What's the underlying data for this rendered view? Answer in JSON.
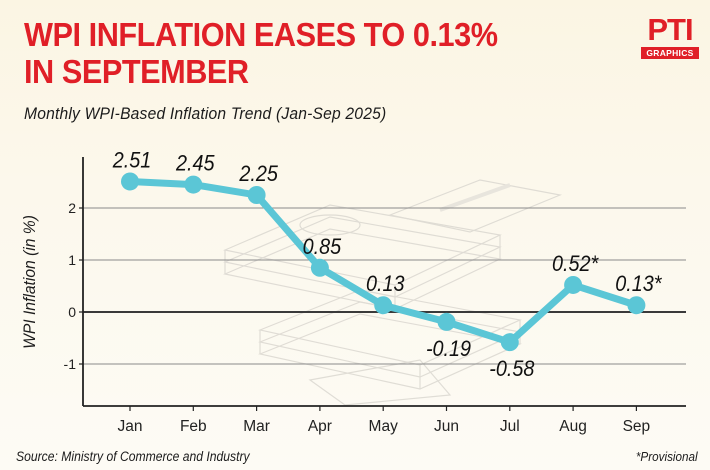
{
  "header": {
    "title_line1": "WPI INFLATION EASES TO 0.13%",
    "title_line2": "IN SEPTEMBER",
    "subtitle": "Monthly WPI-Based Inflation Trend (Jan-Sep 2025)",
    "logo_mark": "PTI",
    "logo_badge": "GRAPHICS"
  },
  "footer": {
    "source": "Source: Ministry of Commerce and Industry",
    "note": "*Provisional"
  },
  "colors": {
    "title": "#e01f27",
    "line": "#5bc6d6",
    "axis": "#222222",
    "grid": "#8a8a8a"
  },
  "chart_data": {
    "type": "line",
    "title": "WPI INFLATION EASES TO 0.13% IN SEPTEMBER",
    "subtitle": "Monthly WPI-Based Inflation Trend (Jan-Sep 2025)",
    "xlabel": "",
    "ylabel": "WPI Inflation (in %)",
    "categories": [
      "Jan",
      "Feb",
      "Mar",
      "Apr",
      "May",
      "Jun",
      "Jul",
      "Aug",
      "Sep"
    ],
    "series": [
      {
        "name": "WPI Inflation",
        "values": [
          2.51,
          2.45,
          2.25,
          0.85,
          0.13,
          -0.19,
          -0.58,
          0.52,
          0.13
        ],
        "labels": [
          "2.51",
          "2.45",
          "2.25",
          "0.85",
          "0.13",
          "-0.19",
          "-0.58",
          "0.52*",
          "0.13*"
        ],
        "label_position": [
          "above",
          "above",
          "above",
          "above",
          "above",
          "below",
          "below",
          "above",
          "above"
        ]
      }
    ],
    "yticks": [
      2,
      1,
      0,
      -1
    ],
    "ytick_labels": [
      "2",
      "1",
      "0",
      "-1"
    ],
    "ylim": [
      -1.8,
      3.0
    ],
    "grid": true,
    "legend": "none",
    "annotations": [
      "*Provisional"
    ]
  }
}
